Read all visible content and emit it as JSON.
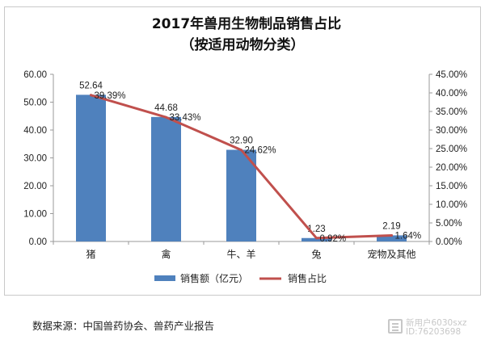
{
  "chart_data": {
    "type": "bar",
    "title_lines": [
      "2017年兽用生物制品销售占比",
      "（按适用动物分类）"
    ],
    "categories": [
      "猪",
      "禽",
      "牛、羊",
      "兔",
      "宠物及其他"
    ],
    "series": [
      {
        "name": "销售额（亿元）",
        "type": "bar",
        "axis": "left",
        "color": "#4f81bd",
        "values": [
          52.64,
          44.68,
          32.9,
          1.23,
          2.19
        ],
        "labels": [
          "52.64",
          "44.68",
          "32.90",
          "1.23",
          "2.19"
        ]
      },
      {
        "name": "销售占比",
        "type": "line",
        "axis": "right",
        "color": "#c0504d",
        "values": [
          39.39,
          33.43,
          24.62,
          0.92,
          1.64
        ],
        "labels": [
          "39.39%",
          "33.43%",
          "24.62%",
          "0.92%",
          "1.64%"
        ]
      }
    ],
    "y_left": {
      "min": 0,
      "max": 60,
      "step": 10,
      "tick_labels": [
        "0.00",
        "10.00",
        "20.00",
        "30.00",
        "40.00",
        "50.00",
        "60.00"
      ]
    },
    "y_right": {
      "min": 0,
      "max": 45,
      "step": 5,
      "tick_labels": [
        "0.00%",
        "5.00%",
        "10.00%",
        "15.00%",
        "20.00%",
        "25.00%",
        "30.00%",
        "35.00%",
        "40.00%",
        "45.00%"
      ]
    },
    "grid": false,
    "legend_position": "bottom"
  },
  "source_note": "数据来源：中国兽药协会、兽药产业报告",
  "watermark": {
    "line1": "新用户6030sxz",
    "line2": "ID:76203698"
  }
}
